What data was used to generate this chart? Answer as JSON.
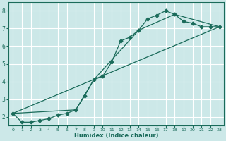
{
  "xlabel": "Humidex (Indice chaleur)",
  "background_color": "#cce8e8",
  "grid_color": "#ffffff",
  "line_color": "#1a6b5a",
  "xlim": [
    -0.5,
    23.5
  ],
  "ylim": [
    1.5,
    8.5
  ],
  "yticks": [
    2,
    3,
    4,
    5,
    6,
    7,
    8
  ],
  "xticks": [
    0,
    1,
    2,
    3,
    4,
    5,
    6,
    7,
    8,
    9,
    10,
    11,
    12,
    13,
    14,
    15,
    16,
    17,
    18,
    19,
    20,
    21,
    22,
    23
  ],
  "series_main": {
    "x": [
      0,
      1,
      2,
      3,
      4,
      5,
      6,
      7,
      8,
      9,
      10,
      11,
      12,
      13,
      14,
      15,
      16,
      17,
      18,
      19,
      20,
      21,
      22,
      23
    ],
    "y": [
      2.2,
      1.7,
      1.7,
      1.8,
      1.9,
      2.1,
      2.2,
      2.4,
      3.2,
      4.1,
      4.3,
      5.1,
      6.3,
      6.5,
      6.9,
      7.55,
      7.75,
      8.0,
      7.8,
      7.4,
      7.3,
      7.1,
      7.1,
      7.1
    ]
  },
  "series_straight": {
    "x": [
      0,
      23
    ],
    "y": [
      2.2,
      7.1
    ]
  },
  "series_piecewise": {
    "x": [
      0,
      7,
      9,
      14,
      18,
      23
    ],
    "y": [
      2.2,
      2.4,
      4.1,
      6.9,
      7.8,
      7.1
    ]
  }
}
